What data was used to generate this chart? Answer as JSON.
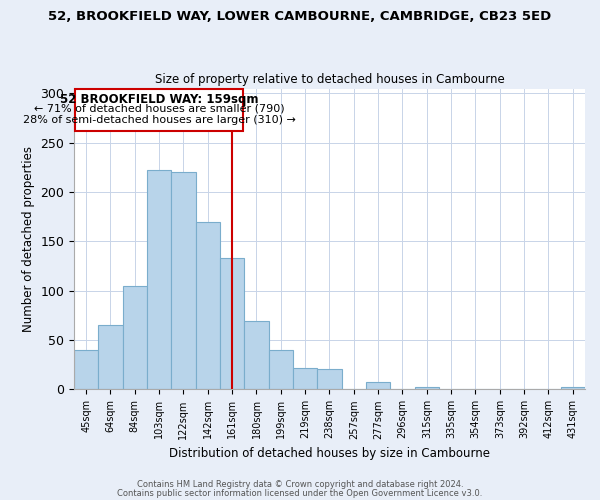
{
  "title": "52, BROOKFIELD WAY, LOWER CAMBOURNE, CAMBRIDGE, CB23 5ED",
  "subtitle": "Size of property relative to detached houses in Cambourne",
  "xlabel": "Distribution of detached houses by size in Cambourne",
  "ylabel": "Number of detached properties",
  "bar_labels": [
    "45sqm",
    "64sqm",
    "84sqm",
    "103sqm",
    "122sqm",
    "142sqm",
    "161sqm",
    "180sqm",
    "199sqm",
    "219sqm",
    "238sqm",
    "257sqm",
    "277sqm",
    "296sqm",
    "315sqm",
    "335sqm",
    "354sqm",
    "373sqm",
    "392sqm",
    "412sqm",
    "431sqm"
  ],
  "bar_values": [
    40,
    65,
    105,
    222,
    220,
    170,
    133,
    69,
    40,
    22,
    21,
    0,
    8,
    0,
    2,
    0,
    0,
    0,
    0,
    0,
    2
  ],
  "bar_color": "#b8d4ea",
  "bar_edge_color": "#7aadcc",
  "vline_x": 6,
  "vline_color": "#cc0000",
  "annotation_title": "52 BROOKFIELD WAY: 159sqm",
  "annotation_line1": "← 71% of detached houses are smaller (790)",
  "annotation_line2": "28% of semi-detached houses are larger (310) →",
  "annotation_box_color": "#ffffff",
  "annotation_box_edge": "#cc0000",
  "ylim": [
    0,
    305
  ],
  "yticks": [
    0,
    50,
    100,
    150,
    200,
    250,
    300
  ],
  "footer1": "Contains HM Land Registry data © Crown copyright and database right 2024.",
  "footer2": "Contains public sector information licensed under the Open Government Licence v3.0.",
  "bg_color": "#e8eef8",
  "plot_bg_color": "#ffffff",
  "grid_color": "#c8d4e8"
}
